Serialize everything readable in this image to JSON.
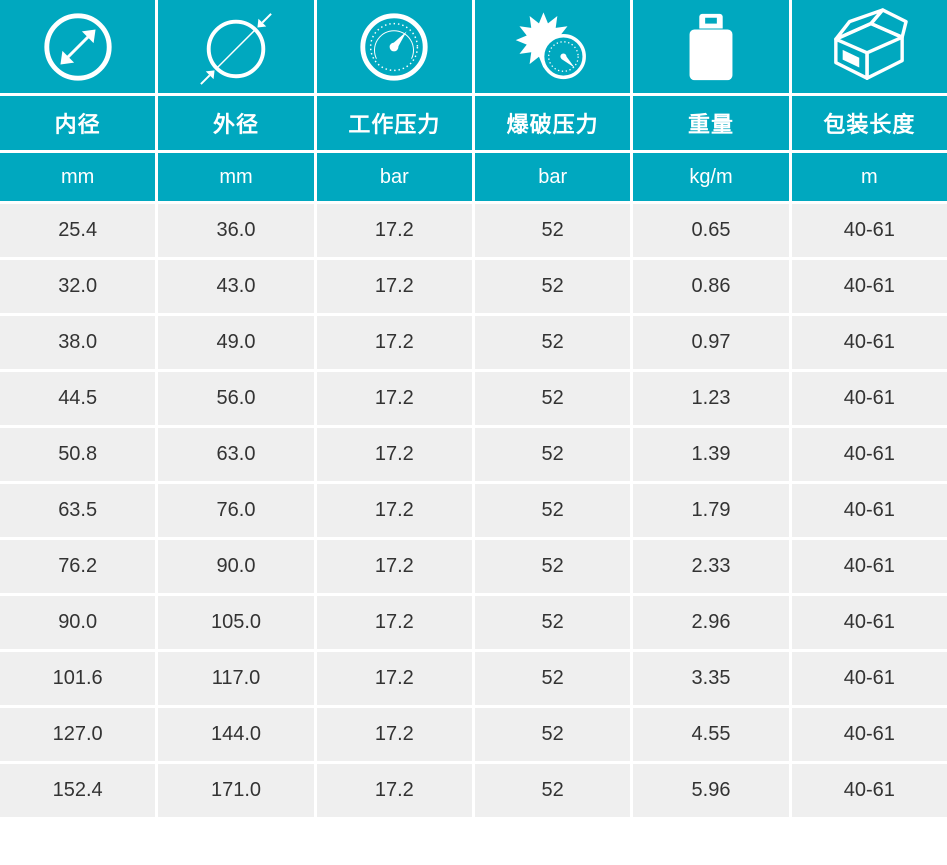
{
  "colors": {
    "header": "#00A8BF",
    "row": "#EFEFEF",
    "text": "#333333",
    "header_text": "#FFFFFF"
  },
  "columns": [
    {
      "icon": "inner-diameter-icon",
      "label": "内径",
      "unit": "mm"
    },
    {
      "icon": "outer-diameter-icon",
      "label": "外径",
      "unit": "mm"
    },
    {
      "icon": "pressure-gauge-icon",
      "label": "工作压力",
      "unit": "bar"
    },
    {
      "icon": "burst-pressure-icon",
      "label": "爆破压力",
      "unit": "bar"
    },
    {
      "icon": "weight-icon",
      "label": "重量",
      "unit": "kg/m"
    },
    {
      "icon": "package-box-icon",
      "label": "包装长度",
      "unit": "m"
    }
  ],
  "rows": [
    [
      "25.4",
      "36.0",
      "17.2",
      "52",
      "0.65",
      "40-61"
    ],
    [
      "32.0",
      "43.0",
      "17.2",
      "52",
      "0.86",
      "40-61"
    ],
    [
      "38.0",
      "49.0",
      "17.2",
      "52",
      "0.97",
      "40-61"
    ],
    [
      "44.5",
      "56.0",
      "17.2",
      "52",
      "1.23",
      "40-61"
    ],
    [
      "50.8",
      "63.0",
      "17.2",
      "52",
      "1.39",
      "40-61"
    ],
    [
      "63.5",
      "76.0",
      "17.2",
      "52",
      "1.79",
      "40-61"
    ],
    [
      "76.2",
      "90.0",
      "17.2",
      "52",
      "2.33",
      "40-61"
    ],
    [
      "90.0",
      "105.0",
      "17.2",
      "52",
      "2.96",
      "40-61"
    ],
    [
      "101.6",
      "117.0",
      "17.2",
      "52",
      "3.35",
      "40-61"
    ],
    [
      "127.0",
      "144.0",
      "17.2",
      "52",
      "4.55",
      "40-61"
    ],
    [
      "152.4",
      "171.0",
      "17.2",
      "52",
      "5.96",
      "40-61"
    ]
  ]
}
